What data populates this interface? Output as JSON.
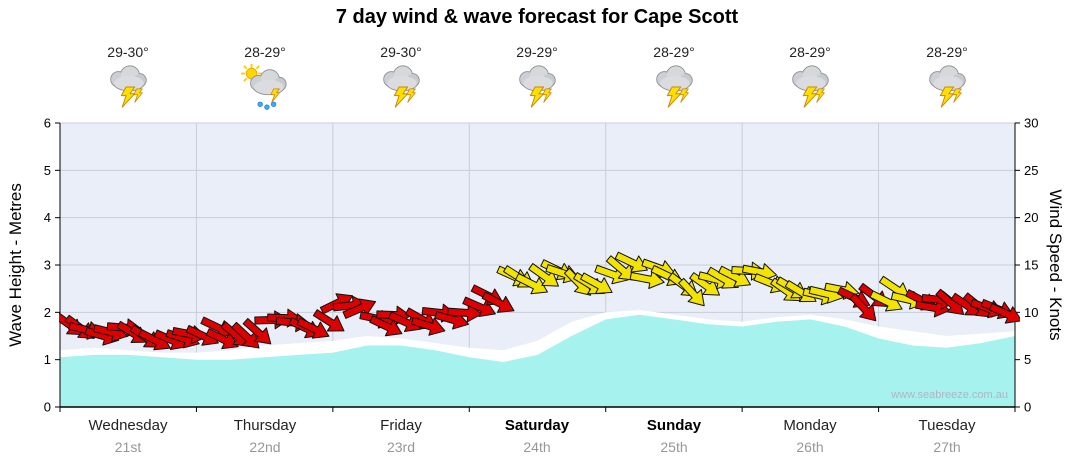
{
  "title": "7 day wind & wave forecast for Cape Scott",
  "watermark": "www.seabreeze.com.au",
  "axes": {
    "left_label": "Wave Height - Metres",
    "right_label": "Wind Speed - Knots",
    "left_ticks": [
      0,
      1,
      2,
      3,
      4,
      5,
      6
    ],
    "right_ticks": [
      0,
      5,
      10,
      15,
      20,
      25,
      30
    ]
  },
  "days": [
    {
      "name": "Wednesday",
      "date": "21st",
      "temp": "29-30°",
      "icon": "thunderstorm",
      "bold": false
    },
    {
      "name": "Thursday",
      "date": "22nd",
      "temp": "28-29°",
      "icon": "sun-showers",
      "bold": false
    },
    {
      "name": "Friday",
      "date": "23rd",
      "temp": "29-30°",
      "icon": "thunderstorm",
      "bold": false
    },
    {
      "name": "Saturday",
      "date": "24th",
      "temp": "29-29°",
      "icon": "thunderstorm",
      "bold": true
    },
    {
      "name": "Sunday",
      "date": "25th",
      "temp": "28-29°",
      "icon": "thunderstorm",
      "bold": true
    },
    {
      "name": "Monday",
      "date": "26th",
      "temp": "28-29°",
      "icon": "thunderstorm",
      "bold": false
    },
    {
      "name": "Tuesday",
      "date": "27th",
      "temp": "28-29°",
      "icon": "thunderstorm",
      "bold": false
    }
  ],
  "chart_data": {
    "type": "area",
    "title": "7 day wind & wave forecast for Cape Scott",
    "x_categories": [
      "Wednesday 21st",
      "Thursday 22nd",
      "Friday 23rd",
      "Saturday 24th",
      "Sunday 25th",
      "Monday 26th",
      "Tuesday 27th"
    ],
    "wave_axis_range": [
      0,
      6
    ],
    "wind_axis_range": [
      0,
      30
    ],
    "wave_height_m": {
      "t_step_days": 0.25,
      "values": [
        1.05,
        1.1,
        1.1,
        1.05,
        1.0,
        1.0,
        1.05,
        1.1,
        1.15,
        1.3,
        1.3,
        1.2,
        1.05,
        0.95,
        1.1,
        1.5,
        1.85,
        1.95,
        1.85,
        1.75,
        1.7,
        1.8,
        1.85,
        1.7,
        1.45,
        1.3,
        1.25,
        1.35,
        1.5
      ]
    },
    "total_wave_m": {
      "t_step_days": 0.25,
      "values": [
        1.2,
        1.25,
        1.2,
        1.15,
        1.15,
        1.2,
        1.3,
        1.35,
        1.4,
        1.5,
        1.45,
        1.35,
        1.25,
        1.2,
        1.4,
        1.8,
        2.0,
        2.05,
        1.95,
        1.85,
        1.8,
        1.9,
        1.95,
        1.85,
        1.7,
        1.6,
        1.5,
        1.55,
        1.6
      ]
    },
    "wind": {
      "color_low": "#dd0000",
      "color_high": "#f2e300",
      "threshold_knots": 12,
      "points": [
        {
          "t": 0.125,
          "knots": 9,
          "dir": 25
        },
        {
          "t": 0.375,
          "knots": 8,
          "dir": 10
        },
        {
          "t": 0.625,
          "knots": 7,
          "dir": 35
        },
        {
          "t": 0.875,
          "knots": 8,
          "dir": 20
        },
        {
          "t": 1.125,
          "knots": 8,
          "dir": 15
        },
        {
          "t": 1.375,
          "knots": 8,
          "dir": 30
        },
        {
          "t": 1.625,
          "knots": 9,
          "dir": 10
        },
        {
          "t": 1.875,
          "knots": 9,
          "dir": 25
        },
        {
          "t": 2.125,
          "knots": 10,
          "dir": -15
        },
        {
          "t": 2.375,
          "knots": 9,
          "dir": 15
        },
        {
          "t": 2.625,
          "knots": 9,
          "dir": 30
        },
        {
          "t": 2.875,
          "knots": 10,
          "dir": 10
        },
        {
          "t": 3.125,
          "knots": 11,
          "dir": 20
        },
        {
          "t": 3.375,
          "knots": 13,
          "dir": 35
        },
        {
          "t": 3.625,
          "knots": 14,
          "dir": 25
        },
        {
          "t": 3.875,
          "knots": 13,
          "dir": 40
        },
        {
          "t": 4.125,
          "knots": 15,
          "dir": 30
        },
        {
          "t": 4.375,
          "knots": 14,
          "dir": 20
        },
        {
          "t": 4.625,
          "knots": 13,
          "dir": 35
        },
        {
          "t": 4.875,
          "knots": 14,
          "dir": 25
        },
        {
          "t": 5.125,
          "knots": 14,
          "dir": 15
        },
        {
          "t": 5.375,
          "knots": 13,
          "dir": 30
        },
        {
          "t": 5.625,
          "knots": 12,
          "dir": 20
        },
        {
          "t": 5.875,
          "knots": 11,
          "dir": 35
        },
        {
          "t": 6.125,
          "knots": 12,
          "dir": 25
        },
        {
          "t": 6.375,
          "knots": 11,
          "dir": 15
        },
        {
          "t": 6.625,
          "knots": 11,
          "dir": 30
        },
        {
          "t": 6.875,
          "knots": 10,
          "dir": 20
        }
      ]
    },
    "colors": {
      "plot_bg": "#e9eef8",
      "grid": "#c9cdd8",
      "wave_fill": "#a6f2ef",
      "total_fill": "#ffffff"
    }
  }
}
